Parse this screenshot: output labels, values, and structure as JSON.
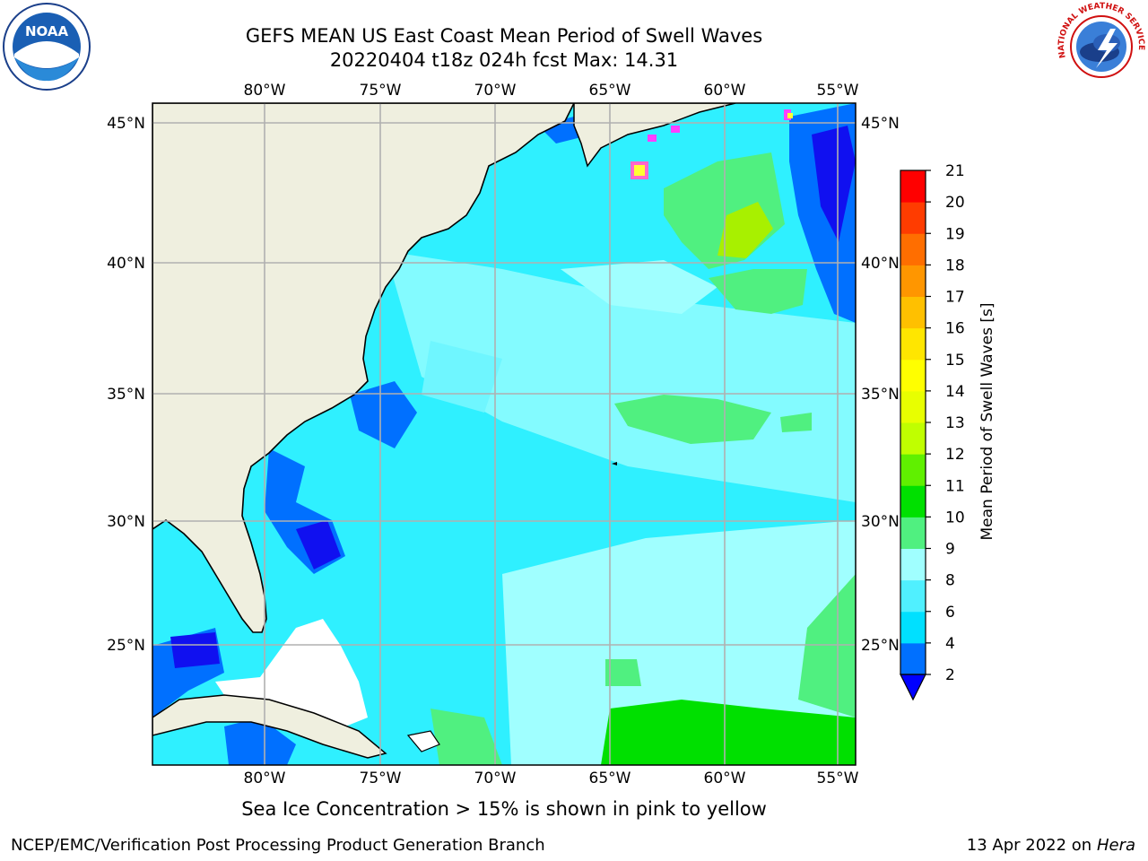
{
  "title": {
    "line1": "GEFS MEAN US East Coast Mean Period of Swell Waves",
    "line2": "20220404 t18z 024h fcst   Max: 14.31"
  },
  "map": {
    "longitude_ticks": [
      "80°W",
      "75°W",
      "70°W",
      "65°W",
      "60°W",
      "55°W"
    ],
    "latitude_ticks": [
      "45°N",
      "40°N",
      "35°N",
      "30°N",
      "25°N"
    ],
    "colors": {
      "land": "#efefdf",
      "frame": "#000000",
      "grid": "#b0b0b0",
      "no_data": "#ffffff"
    }
  },
  "colorbar": {
    "label": "Mean Period of Swell Waves [s]",
    "ticks": [
      "2",
      "4",
      "6",
      "8",
      "9",
      "10",
      "11",
      "12",
      "13",
      "14",
      "15",
      "16",
      "17",
      "18",
      "19",
      "20",
      "21"
    ],
    "colors": [
      "#0070ff",
      "#00e0ff",
      "#50f0ff",
      "#a0ffff",
      "#50f080",
      "#00e000",
      "#60f000",
      "#c0ff00",
      "#e8ff00",
      "#ffff00",
      "#ffe600",
      "#ffc000",
      "#ff9600",
      "#ff6e00",
      "#ff3c00",
      "#ff0000"
    ],
    "extend_color": "#0000ff"
  },
  "caption": "Sea Ice Concentration > 15% is shown in pink to yellow",
  "footer": {
    "left": "NCEP/EMC/Verification Post Processing Product Generation Branch",
    "right_date": "13 Apr 2022 on",
    "right_host": "Hera"
  },
  "logos": {
    "noaa": {
      "text": "NOAA",
      "icon": "noaa-logo-icon"
    },
    "nws": {
      "text": "NATIONAL WEATHER SERVICE",
      "icon": "nws-logo-icon"
    }
  }
}
